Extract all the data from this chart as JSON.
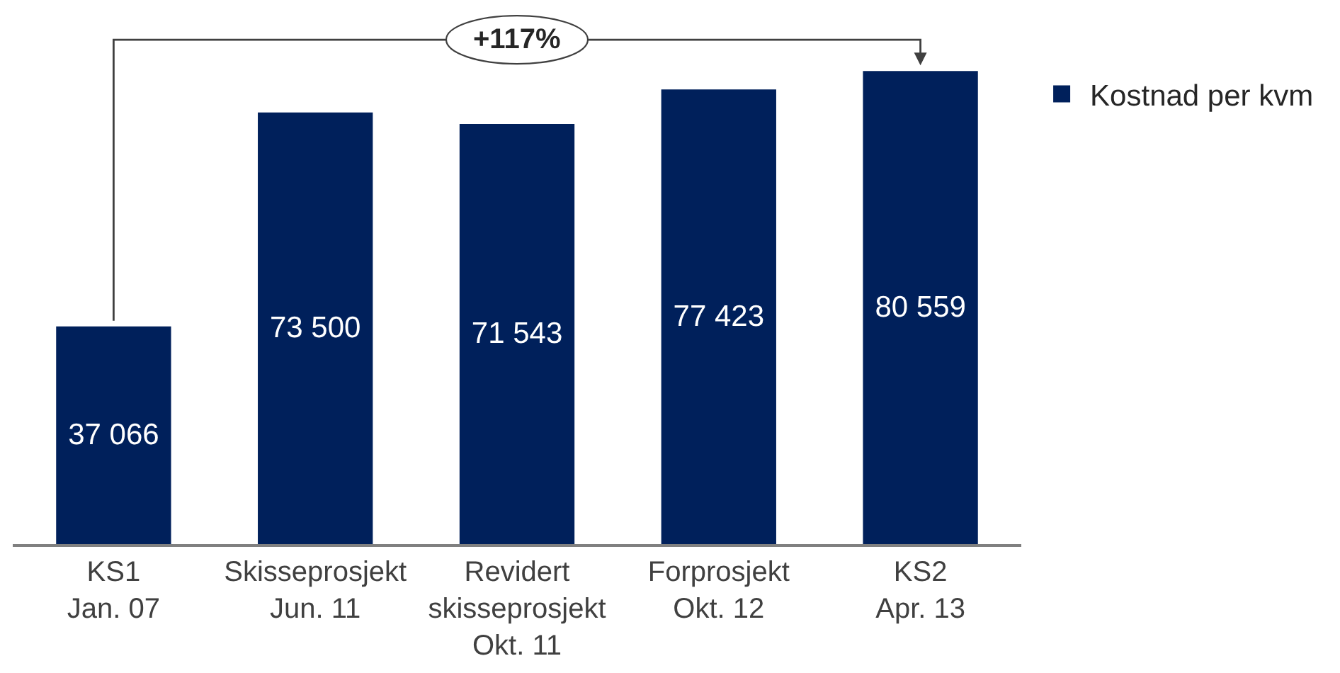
{
  "chart_data": {
    "type": "bar",
    "categories": [
      "KS1\nJan. 07",
      "Skisseprosjekt\nJun. 11",
      "Revidert\nskisseprosjekt\nOkt. 11",
      "Forprosjekt\nOkt. 12",
      "KS2\nApr. 13"
    ],
    "series": [
      {
        "name": "Kostnad per kvm",
        "color": "#00205b",
        "values": [
          37066,
          73500,
          71543,
          77423,
          80559
        ],
        "value_labels": [
          "37 066",
          "73 500",
          "71 543",
          "77 423",
          "80 559"
        ]
      }
    ],
    "annotations": [
      "+117%"
    ],
    "legend": "top right"
  }
}
